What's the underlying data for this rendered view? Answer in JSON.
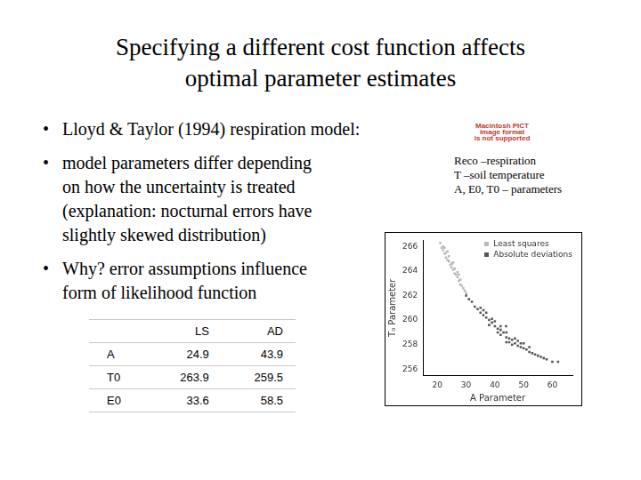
{
  "title": [
    "Specifying a different cost function affects",
    "optimal parameter estimates"
  ],
  "bullets": [
    [
      "Lloyd & Taylor (1994) respiration model:"
    ],
    [
      "model parameters differ depending",
      "on how the uncertainty is treated",
      "(explanation: nocturnal errors have",
      "slightly skewed distribution)"
    ],
    [
      "Why? error assumptions influence",
      "form of likelihood function"
    ]
  ],
  "image_placeholder": [
    "Macintosh PICT",
    "image format",
    "is not supported"
  ],
  "notes": [
    "Reco –respiration",
    "T –soil temperature",
    "A, E0, T0 – parameters"
  ],
  "table": {
    "columns": [
      "LS",
      "AD"
    ],
    "rows": [
      {
        "label": "A",
        "values": [
          24.9,
          43.9
        ]
      },
      {
        "label": "T0",
        "values": [
          263.9,
          259.5
        ]
      },
      {
        "label": "E0",
        "values": [
          33.6,
          58.5
        ]
      }
    ]
  },
  "chart_data": {
    "type": "scatter",
    "xlabel": "A Parameter",
    "ylabel": "T₀ Parameter",
    "xlim": [
      15,
      67
    ],
    "ylim": [
      255.5,
      266.5
    ],
    "xticks": [
      20,
      30,
      40,
      50,
      60
    ],
    "yticks": [
      256,
      258,
      260,
      262,
      264,
      266
    ],
    "grid": false,
    "legend": "upper right",
    "series": [
      {
        "name": "Least squares",
        "color": "#b8b8b8",
        "marker": "square",
        "x": [
          21,
          21.5,
          22,
          22,
          22.5,
          23,
          23,
          23.5,
          24,
          24,
          24.5,
          24.9,
          25,
          25.5,
          26,
          26,
          26.5,
          27,
          27,
          27.5,
          28,
          28,
          28.5,
          29,
          29.5,
          30,
          23.5,
          25.5,
          27.5,
          22.5
        ],
        "values": [
          266.3,
          265.9,
          265.7,
          266.0,
          265.4,
          265.5,
          265.1,
          264.9,
          264.8,
          265.2,
          264.5,
          264.3,
          264.6,
          264.1,
          264.2,
          263.8,
          263.7,
          263.5,
          263.9,
          263.2,
          263.3,
          262.9,
          262.8,
          262.6,
          262.4,
          262.2,
          265.6,
          264.7,
          263.7,
          265.9
        ]
      },
      {
        "name": "Absolute deviations",
        "color": "#555555",
        "marker": "square",
        "x": [
          30,
          31,
          32,
          33,
          34,
          35,
          35,
          36,
          37,
          37,
          38,
          38,
          39,
          40,
          40,
          41,
          41,
          42,
          42,
          43,
          43.9,
          44,
          44,
          45,
          45,
          46,
          46,
          47,
          47,
          48,
          48,
          49,
          50,
          50,
          51,
          52,
          52,
          53,
          54,
          55,
          56,
          57,
          58,
          60,
          62,
          39,
          44,
          49,
          36,
          42
        ],
        "values": [
          262.0,
          261.7,
          261.5,
          261.1,
          260.9,
          260.6,
          261.0,
          260.4,
          260.2,
          260.6,
          260.0,
          259.6,
          259.8,
          259.5,
          259.9,
          259.3,
          259.0,
          259.2,
          258.8,
          259.0,
          259.5,
          258.6,
          259.0,
          258.5,
          258.2,
          258.4,
          258.0,
          258.1,
          258.5,
          257.9,
          258.3,
          257.8,
          257.7,
          258.1,
          257.6,
          257.4,
          257.8,
          257.3,
          257.2,
          257.1,
          257.0,
          256.9,
          256.8,
          256.6,
          256.6,
          260.1,
          258.2,
          258.1,
          260.8,
          259.5
        ]
      }
    ]
  }
}
